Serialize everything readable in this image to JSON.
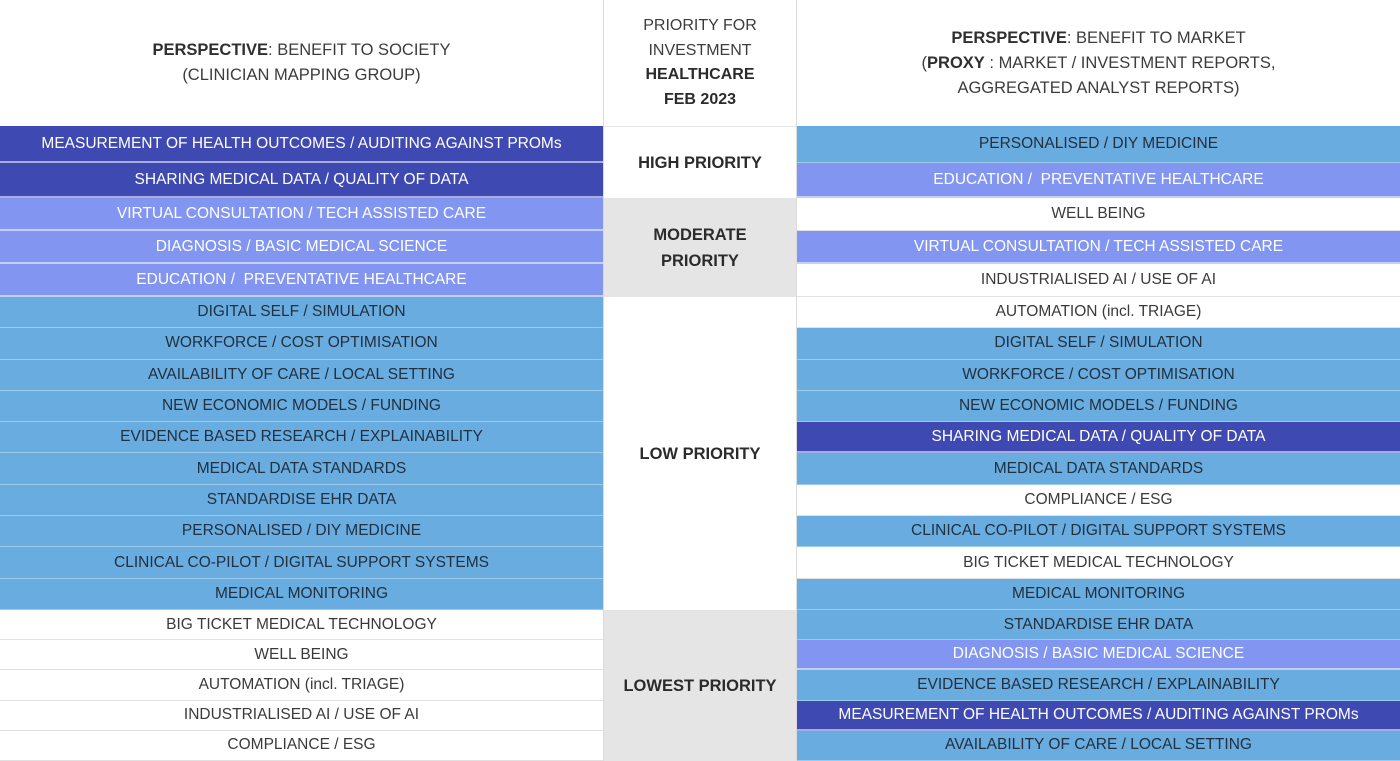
{
  "header": {
    "left": {
      "bold": "PERSPECTIVE",
      "rest": ": BENEFIT TO SOCIETY",
      "line2": "(CLINICIAN MAPPING GROUP)"
    },
    "middle": {
      "line1": "PRIORITY FOR",
      "line2": "INVESTMENT",
      "line3": "HEALTHCARE",
      "line4": "FEB 2023"
    },
    "right": {
      "bold": "PERSPECTIVE",
      "rest": ": BENEFIT TO MARKET",
      "line2_open": "(",
      "line2_bold": "PROXY",
      "line2_rest": " : MARKET / INVESTMENT REPORTS,",
      "line3": "AGGREGATED ANALYST REPORTS)"
    }
  },
  "priority_sections": [
    {
      "label_lines": [
        "HIGH PRIORITY"
      ],
      "row_start": 1,
      "row_end": 2,
      "background": "white"
    },
    {
      "label_lines": [
        "MODERATE",
        "PRIORITY"
      ],
      "row_start": 3,
      "row_end": 5,
      "background": "gray"
    },
    {
      "label_lines": [
        "LOW PRIORITY"
      ],
      "row_start": 6,
      "row_end": 15,
      "background": "white"
    },
    {
      "label_lines": [
        "LOWEST PRIORITY"
      ],
      "row_start": 16,
      "row_end": 20,
      "background": "gray"
    }
  ],
  "left_rows": [
    {
      "label": "MEASUREMENT OF HEALTH OUTCOMES / AUDITING AGAINST PROMs",
      "color": "dark"
    },
    {
      "label": "SHARING MEDICAL DATA / QUALITY OF DATA",
      "color": "dark"
    },
    {
      "label": "VIRTUAL CONSULTATION / TECH ASSISTED CARE",
      "color": "medium"
    },
    {
      "label": "DIAGNOSIS / BASIC MEDICAL SCIENCE",
      "color": "medium"
    },
    {
      "label": "EDUCATION /  PREVENTATIVE HEALTHCARE",
      "color": "medium"
    },
    {
      "label": "DIGITAL SELF / SIMULATION",
      "color": "light"
    },
    {
      "label": "WORKFORCE / COST OPTIMISATION",
      "color": "light"
    },
    {
      "label": "AVAILABILITY OF CARE / LOCAL SETTING",
      "color": "light"
    },
    {
      "label": "NEW ECONOMIC MODELS / FUNDING",
      "color": "light"
    },
    {
      "label": "EVIDENCE BASED RESEARCH / EXPLAINABILITY",
      "color": "light"
    },
    {
      "label": "MEDICAL DATA STANDARDS",
      "color": "light"
    },
    {
      "label": "STANDARDISE EHR DATA",
      "color": "light"
    },
    {
      "label": "PERSONALISED / DIY MEDICINE",
      "color": "light"
    },
    {
      "label": "CLINICAL CO-PILOT / DIGITAL SUPPORT SYSTEMS",
      "color": "light"
    },
    {
      "label": "MEDICAL MONITORING",
      "color": "light"
    },
    {
      "label": "BIG TICKET MEDICAL TECHNOLOGY",
      "color": "white"
    },
    {
      "label": "WELL BEING",
      "color": "white"
    },
    {
      "label": "AUTOMATION (incl. TRIAGE)",
      "color": "white"
    },
    {
      "label": "INDUSTRIALISED AI / USE OF AI",
      "color": "white"
    },
    {
      "label": "COMPLIANCE / ESG",
      "color": "white"
    }
  ],
  "right_rows": [
    {
      "label": "PERSONALISED / DIY MEDICINE",
      "color": "light"
    },
    {
      "label": "EDUCATION /  PREVENTATIVE HEALTHCARE",
      "color": "medium"
    },
    {
      "label": "WELL BEING",
      "color": "white"
    },
    {
      "label": "VIRTUAL CONSULTATION / TECH ASSISTED CARE",
      "color": "medium"
    },
    {
      "label": "INDUSTRIALISED AI / USE OF AI",
      "color": "white"
    },
    {
      "label": "AUTOMATION (incl. TRIAGE)",
      "color": "white"
    },
    {
      "label": "DIGITAL SELF / SIMULATION",
      "color": "light"
    },
    {
      "label": "WORKFORCE / COST OPTIMISATION",
      "color": "light"
    },
    {
      "label": "NEW ECONOMIC MODELS / FUNDING",
      "color": "light"
    },
    {
      "label": "SHARING MEDICAL DATA / QUALITY OF DATA",
      "color": "dark"
    },
    {
      "label": "MEDICAL DATA STANDARDS",
      "color": "light"
    },
    {
      "label": "COMPLIANCE / ESG",
      "color": "white"
    },
    {
      "label": "CLINICAL CO-PILOT / DIGITAL SUPPORT SYSTEMS",
      "color": "light"
    },
    {
      "label": "BIG TICKET MEDICAL TECHNOLOGY",
      "color": "white"
    },
    {
      "label": "MEDICAL MONITORING",
      "color": "light"
    },
    {
      "label": "STANDARDISE EHR DATA",
      "color": "light"
    },
    {
      "label": "DIAGNOSIS / BASIC MEDICAL SCIENCE",
      "color": "medium"
    },
    {
      "label": "EVIDENCE BASED RESEARCH / EXPLAINABILITY",
      "color": "light"
    },
    {
      "label": "MEASUREMENT OF HEALTH OUTCOMES / AUDITING AGAINST PROMs",
      "color": "dark"
    },
    {
      "label": "AVAILABILITY OF CARE / LOCAL SETTING",
      "color": "light"
    }
  ],
  "colors": {
    "dark": "#3e49b1",
    "medium": "#8295f0",
    "light": "#69ace0",
    "section_gray": "#e5e5e5",
    "text_on_dark": "#ffffff",
    "text_on_light": "#22303f",
    "text_on_white": "#3a3a3a"
  }
}
